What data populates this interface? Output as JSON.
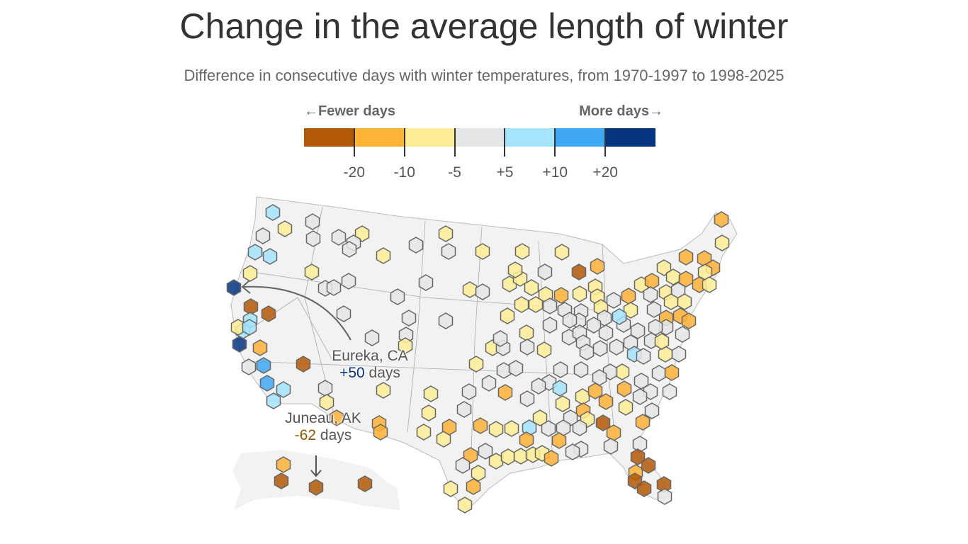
{
  "title": "Change in the average length of winter",
  "subtitle": "Difference in consecutive days with winter temperatures, from 1970-1997 to 1998-2025",
  "legend": {
    "fewer_label": "←Fewer days",
    "more_label": "More days→",
    "bins": [
      {
        "key": "D",
        "color": "#b35806"
      },
      {
        "key": "O",
        "color": "#feb236"
      },
      {
        "key": "Y",
        "color": "#feed94"
      },
      {
        "key": "G",
        "color": "#e5e6e8"
      },
      {
        "key": "L",
        "color": "#a4e4fd"
      },
      {
        "key": "B",
        "color": "#3fa9f5"
      },
      {
        "key": "N",
        "color": "#053480"
      }
    ],
    "ticks": [
      "-20",
      "-10",
      "-5",
      "+5",
      "+10",
      "+20"
    ]
  },
  "annotations": {
    "eureka": {
      "place": "Eureka, CA",
      "value": "+50",
      "unit": "days",
      "color": "#053480"
    },
    "juneau": {
      "place": "Juneau, AK",
      "value": "-62",
      "unit": "days",
      "color": "#8a5a00"
    }
  },
  "stations": "LYGGGGYGGYGYGYYYLLYYNGGGGGYGDDLLYNLOGGGGGYGBDBLLGYYOOOODDDYYYYOGGGOYGGYGGYYYYYGDOYOYYYYYGGGYGOYYOYYOOOYOYOOYYGGGYYOOOGGGGLGGGGGYGYGGGGGGGGGLGYGYGGOYGGGGGLGGYYOOOGGGGYGOOYDOGGGGGLYYYOOGYGYYYYYOOGGOYOYGDODDDD"
}
